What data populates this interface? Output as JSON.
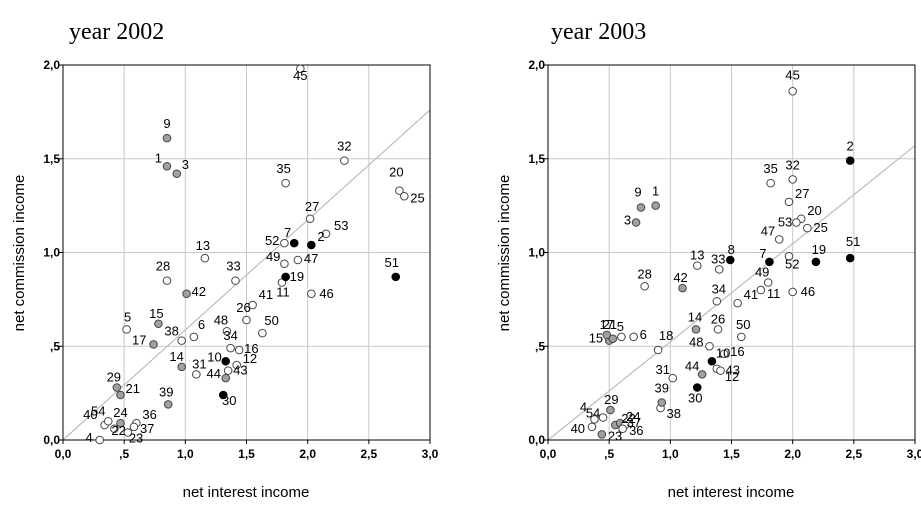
{
  "chart_data": [
    {
      "type": "scatter",
      "title": "year 2002",
      "xlabel": "net interest income",
      "ylabel": "net commission income",
      "xlim": [
        0,
        3
      ],
      "ylim": [
        0,
        2
      ],
      "xticks": [
        "0,0",
        ",5",
        "1,0",
        "1,5",
        "2,0",
        "2,5",
        "3,0"
      ],
      "yticks": [
        "0,0",
        ",5",
        "1,0",
        "1,5",
        "2,0"
      ],
      "grid": true,
      "reference_line": [
        [
          0,
          0
        ],
        [
          3,
          1.76
        ]
      ],
      "point_styles": {
        "open": "#ffffff",
        "gray": "#a0a0a0",
        "black": "#000000"
      },
      "points": [
        {
          "label": "1",
          "x": 0.85,
          "y": 1.46,
          "style": "gray"
        },
        {
          "label": "2",
          "x": 2.03,
          "y": 1.04,
          "style": "black"
        },
        {
          "label": "3",
          "x": 0.93,
          "y": 1.42,
          "style": "gray"
        },
        {
          "label": "4",
          "x": 0.3,
          "y": 0.0,
          "style": "open"
        },
        {
          "label": "5",
          "x": 0.52,
          "y": 0.59,
          "style": "open"
        },
        {
          "label": "6",
          "x": 1.07,
          "y": 0.55,
          "style": "open"
        },
        {
          "label": "7",
          "x": 1.89,
          "y": 1.05,
          "style": "black"
        },
        {
          "label": "9",
          "x": 0.85,
          "y": 1.61,
          "style": "gray"
        },
        {
          "label": "10",
          "x": 1.33,
          "y": 0.42,
          "style": "black"
        },
        {
          "label": "11",
          "x": 1.79,
          "y": 0.84,
          "style": "open"
        },
        {
          "label": "12",
          "x": 1.42,
          "y": 0.4,
          "style": "open"
        },
        {
          "label": "13",
          "x": 1.16,
          "y": 0.97,
          "style": "open"
        },
        {
          "label": "14",
          "x": 0.97,
          "y": 0.39,
          "style": "gray"
        },
        {
          "label": "15",
          "x": 0.78,
          "y": 0.62,
          "style": "gray"
        },
        {
          "label": "16",
          "x": 1.44,
          "y": 0.48,
          "style": "open"
        },
        {
          "label": "17",
          "x": 0.74,
          "y": 0.51,
          "style": "gray"
        },
        {
          "label": "19",
          "x": 1.82,
          "y": 0.87,
          "style": "black"
        },
        {
          "label": "20",
          "x": 2.75,
          "y": 1.33,
          "style": "open"
        },
        {
          "label": "21",
          "x": 0.47,
          "y": 0.24,
          "style": "gray"
        },
        {
          "label": "22",
          "x": 0.42,
          "y": 0.06,
          "style": "open"
        },
        {
          "label": "23",
          "x": 0.53,
          "y": 0.04,
          "style": "open"
        },
        {
          "label": "24",
          "x": 0.47,
          "y": 0.09,
          "style": "gray"
        },
        {
          "label": "25",
          "x": 2.79,
          "y": 1.3,
          "style": "open"
        },
        {
          "label": "26",
          "x": 1.5,
          "y": 0.64,
          "style": "open"
        },
        {
          "label": "27",
          "x": 2.02,
          "y": 1.18,
          "style": "open"
        },
        {
          "label": "28",
          "x": 0.85,
          "y": 0.85,
          "style": "open"
        },
        {
          "label": "29",
          "x": 0.44,
          "y": 0.28,
          "style": "gray"
        },
        {
          "label": "30",
          "x": 1.31,
          "y": 0.24,
          "style": "black"
        },
        {
          "label": "31",
          "x": 1.09,
          "y": 0.35,
          "style": "open"
        },
        {
          "label": "32",
          "x": 2.3,
          "y": 1.49,
          "style": "open"
        },
        {
          "label": "33",
          "x": 1.41,
          "y": 0.85,
          "style": "open"
        },
        {
          "label": "34",
          "x": 1.37,
          "y": 0.49,
          "style": "open"
        },
        {
          "label": "35",
          "x": 1.82,
          "y": 1.37,
          "style": "open"
        },
        {
          "label": "36",
          "x": 0.6,
          "y": 0.09,
          "style": "open"
        },
        {
          "label": "37",
          "x": 0.58,
          "y": 0.07,
          "style": "open"
        },
        {
          "label": "38",
          "x": 0.97,
          "y": 0.53,
          "style": "open"
        },
        {
          "label": "39",
          "x": 0.86,
          "y": 0.19,
          "style": "gray"
        },
        {
          "label": "40",
          "x": 0.34,
          "y": 0.08,
          "style": "open"
        },
        {
          "label": "41",
          "x": 1.55,
          "y": 0.72,
          "style": "open"
        },
        {
          "label": "42",
          "x": 1.01,
          "y": 0.78,
          "style": "gray"
        },
        {
          "label": "43",
          "x": 1.35,
          "y": 0.37,
          "style": "open"
        },
        {
          "label": "44",
          "x": 1.33,
          "y": 0.33,
          "style": "gray"
        },
        {
          "label": "45",
          "x": 1.94,
          "y": 1.98,
          "style": "open"
        },
        {
          "label": "46",
          "x": 2.03,
          "y": 0.78,
          "style": "open"
        },
        {
          "label": "47",
          "x": 1.92,
          "y": 0.96,
          "style": "open"
        },
        {
          "label": "48",
          "x": 1.34,
          "y": 0.58,
          "style": "open"
        },
        {
          "label": "49",
          "x": 1.81,
          "y": 0.94,
          "style": "open"
        },
        {
          "label": "50",
          "x": 1.63,
          "y": 0.57,
          "style": "open"
        },
        {
          "label": "51",
          "x": 2.72,
          "y": 0.87,
          "style": "black"
        },
        {
          "label": "52",
          "x": 1.81,
          "y": 1.05,
          "style": "open"
        },
        {
          "label": "53",
          "x": 2.15,
          "y": 1.1,
          "style": "open"
        },
        {
          "label": "54",
          "x": 0.37,
          "y": 0.1,
          "style": "open"
        }
      ]
    },
    {
      "type": "scatter",
      "title": "year 2003",
      "xlabel": "net interest income",
      "ylabel": "net commission income",
      "xlim": [
        0,
        3
      ],
      "ylim": [
        0,
        2
      ],
      "xticks": [
        "0,0",
        ",5",
        "1,0",
        "1,5",
        "2,0",
        "2,5",
        "3,0"
      ],
      "yticks": [
        "0,0",
        ",5",
        "1,0",
        "1,5",
        "2,0"
      ],
      "grid": true,
      "reference_line": [
        [
          0,
          0
        ],
        [
          3,
          1.57
        ]
      ],
      "point_styles": {
        "open": "#ffffff",
        "gray": "#a0a0a0",
        "black": "#000000"
      },
      "points": [
        {
          "label": "1",
          "x": 0.88,
          "y": 1.25,
          "style": "gray"
        },
        {
          "label": "2",
          "x": 2.47,
          "y": 1.49,
          "style": "black"
        },
        {
          "label": "3",
          "x": 0.72,
          "y": 1.16,
          "style": "gray"
        },
        {
          "label": "4",
          "x": 0.38,
          "y": 0.11,
          "style": "open"
        },
        {
          "label": "5",
          "x": 0.6,
          "y": 0.55,
          "style": "open"
        },
        {
          "label": "6",
          "x": 0.7,
          "y": 0.55,
          "style": "open"
        },
        {
          "label": "7",
          "x": 1.81,
          "y": 0.95,
          "style": "black"
        },
        {
          "label": "8",
          "x": 1.49,
          "y": 0.96,
          "style": "black"
        },
        {
          "label": "9",
          "x": 0.76,
          "y": 1.24,
          "style": "gray"
        },
        {
          "label": "10",
          "x": 1.34,
          "y": 0.42,
          "style": "black"
        },
        {
          "label": "11",
          "x": 1.74,
          "y": 0.8,
          "style": "open"
        },
        {
          "label": "12",
          "x": 1.38,
          "y": 0.38,
          "style": "open"
        },
        {
          "label": "13",
          "x": 1.22,
          "y": 0.93,
          "style": "open"
        },
        {
          "label": "14",
          "x": 1.21,
          "y": 0.59,
          "style": "gray"
        },
        {
          "label": "15",
          "x": 0.5,
          "y": 0.53,
          "style": "gray"
        },
        {
          "label": "16",
          "x": 1.44,
          "y": 0.46,
          "style": "open"
        },
        {
          "label": "17",
          "x": 0.48,
          "y": 0.56,
          "style": "gray"
        },
        {
          "label": "18",
          "x": 0.9,
          "y": 0.48,
          "style": "open"
        },
        {
          "label": "19",
          "x": 2.19,
          "y": 0.95,
          "style": "black"
        },
        {
          "label": "20",
          "x": 2.07,
          "y": 1.18,
          "style": "open"
        },
        {
          "label": "21",
          "x": 0.53,
          "y": 0.54,
          "style": "gray"
        },
        {
          "label": "22",
          "x": 0.55,
          "y": 0.08,
          "style": "gray"
        },
        {
          "label": "23",
          "x": 0.44,
          "y": 0.03,
          "style": "gray"
        },
        {
          "label": "24",
          "x": 0.59,
          "y": 0.09,
          "style": "gray"
        },
        {
          "label": "25",
          "x": 2.12,
          "y": 1.13,
          "style": "open"
        },
        {
          "label": "26",
          "x": 1.39,
          "y": 0.59,
          "style": "open"
        },
        {
          "label": "27",
          "x": 1.97,
          "y": 1.27,
          "style": "open"
        },
        {
          "label": "28",
          "x": 0.79,
          "y": 0.82,
          "style": "open"
        },
        {
          "label": "29",
          "x": 0.51,
          "y": 0.16,
          "style": "gray"
        },
        {
          "label": "30",
          "x": 1.22,
          "y": 0.28,
          "style": "black"
        },
        {
          "label": "31",
          "x": 1.02,
          "y": 0.33,
          "style": "open"
        },
        {
          "label": "32",
          "x": 2.0,
          "y": 1.39,
          "style": "open"
        },
        {
          "label": "33",
          "x": 1.4,
          "y": 0.91,
          "style": "open"
        },
        {
          "label": "34",
          "x": 1.38,
          "y": 0.74,
          "style": "open"
        },
        {
          "label": "35",
          "x": 1.82,
          "y": 1.37,
          "style": "open"
        },
        {
          "label": "36",
          "x": 0.63,
          "y": 0.08,
          "style": "open"
        },
        {
          "label": "37",
          "x": 0.61,
          "y": 0.06,
          "style": "open"
        },
        {
          "label": "38",
          "x": 0.92,
          "y": 0.17,
          "style": "open"
        },
        {
          "label": "39",
          "x": 0.93,
          "y": 0.2,
          "style": "gray"
        },
        {
          "label": "40",
          "x": 0.36,
          "y": 0.07,
          "style": "open"
        },
        {
          "label": "41",
          "x": 1.55,
          "y": 0.73,
          "style": "open"
        },
        {
          "label": "42",
          "x": 1.1,
          "y": 0.81,
          "style": "gray"
        },
        {
          "label": "43",
          "x": 1.41,
          "y": 0.37,
          "style": "open"
        },
        {
          "label": "44",
          "x": 1.26,
          "y": 0.35,
          "style": "gray"
        },
        {
          "label": "45",
          "x": 2.0,
          "y": 1.86,
          "style": "open"
        },
        {
          "label": "46",
          "x": 2.0,
          "y": 0.79,
          "style": "open"
        },
        {
          "label": "47",
          "x": 1.89,
          "y": 1.07,
          "style": "open"
        },
        {
          "label": "48",
          "x": 1.32,
          "y": 0.5,
          "style": "open"
        },
        {
          "label": "49",
          "x": 1.8,
          "y": 0.84,
          "style": "open"
        },
        {
          "label": "50",
          "x": 1.58,
          "y": 0.55,
          "style": "open"
        },
        {
          "label": "51",
          "x": 2.47,
          "y": 0.97,
          "style": "black"
        },
        {
          "label": "52",
          "x": 1.97,
          "y": 0.98,
          "style": "open"
        },
        {
          "label": "53",
          "x": 2.03,
          "y": 1.16,
          "style": "open"
        },
        {
          "label": "54",
          "x": 0.45,
          "y": 0.12,
          "style": "open"
        }
      ]
    }
  ]
}
